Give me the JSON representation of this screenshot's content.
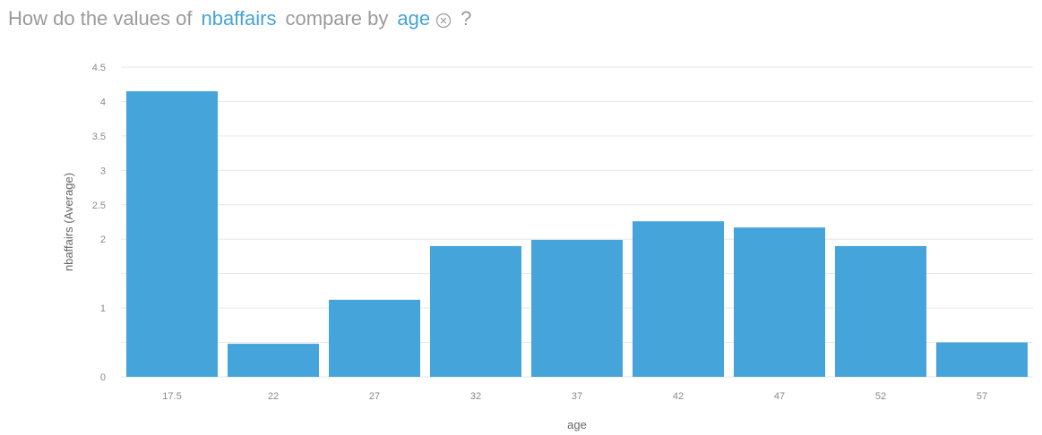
{
  "question": {
    "prefix": "How do the values of",
    "measure": "nbaffairs",
    "middle": "compare by",
    "dimension": "age",
    "suffix": "?",
    "clear_icon": "circle-x-icon"
  },
  "colors": {
    "bar": "#45a4d9",
    "token": "#44a3d8",
    "grid": "#e6e6e6",
    "question_text": "#9a9a9a"
  },
  "chart_data": {
    "type": "bar",
    "categories": [
      "17.5",
      "22",
      "27",
      "32",
      "37",
      "42",
      "47",
      "52",
      "57"
    ],
    "values": [
      4.15,
      0.48,
      1.12,
      1.9,
      1.99,
      2.26,
      2.17,
      1.9,
      0.5
    ],
    "xlabel": "age",
    "ylabel": "nbaffairs (Average)",
    "ylim": [
      0,
      4.5
    ],
    "yticks": [
      0,
      1,
      2,
      2.5,
      3,
      3.5,
      4,
      4.5
    ],
    "ytick_labels": [
      "0",
      "1",
      "2",
      "2.5",
      "3",
      "3.5",
      "4",
      "4.5"
    ],
    "grid_lines": [
      0,
      0.5,
      1,
      1.5,
      2,
      2.5,
      3,
      3.5,
      4,
      4.5
    ],
    "grid": true,
    "legend": "none"
  }
}
